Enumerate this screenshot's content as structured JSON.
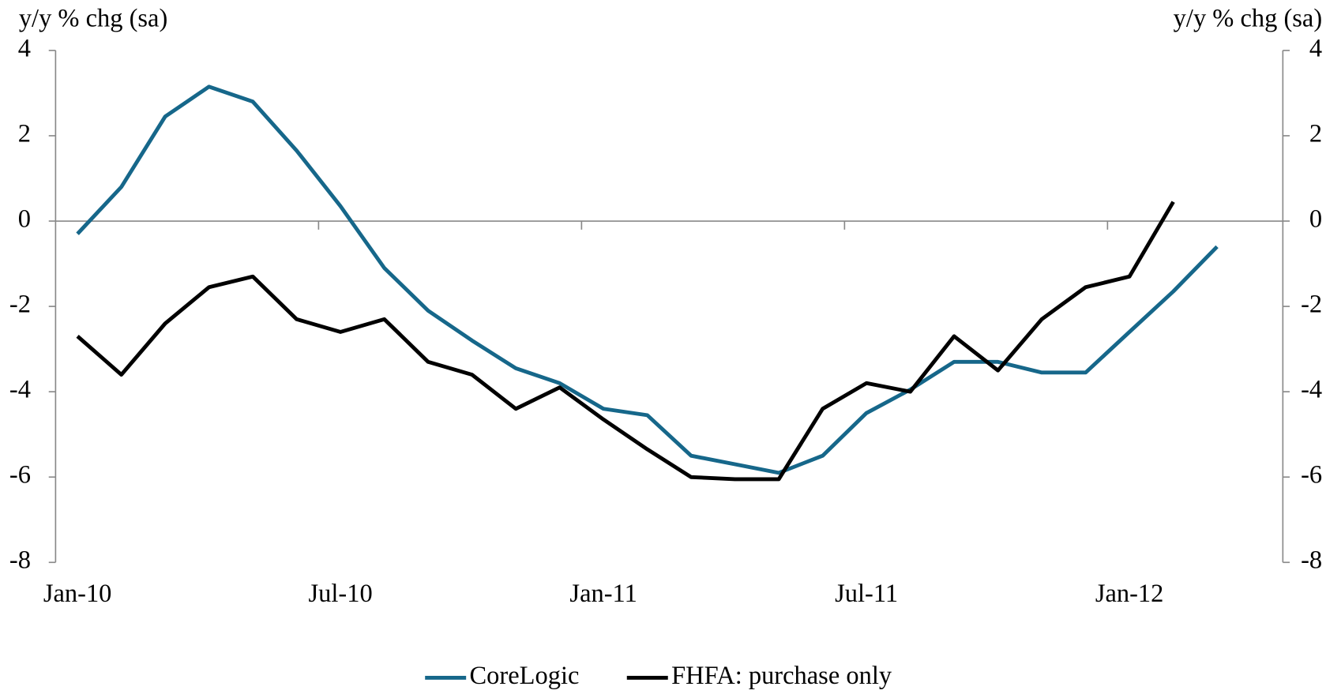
{
  "chart_data": {
    "type": "line",
    "y_label": "y/y % chg (sa)",
    "y2_label": "y/y % chg (sa)",
    "categories": [
      "Jan-10",
      null,
      null,
      null,
      null,
      null,
      "Jul-10",
      null,
      null,
      null,
      null,
      null,
      "Jan-11",
      null,
      null,
      null,
      null,
      null,
      "Jul-11",
      null,
      null,
      null,
      null,
      null,
      "Jan-12",
      null,
      null,
      null
    ],
    "series": [
      {
        "name": "CoreLogic",
        "color": "#16678a",
        "values": [
          -0.3,
          0.8,
          2.45,
          3.15,
          2.8,
          1.65,
          0.35,
          -1.1,
          -2.1,
          -2.8,
          -3.45,
          -3.8,
          -4.4,
          -4.55,
          -5.5,
          -5.7,
          -5.9,
          -5.5,
          -4.5,
          -3.95,
          -3.3,
          -3.3,
          -3.55,
          -3.55,
          -2.6,
          -1.65,
          -0.6,
          null
        ]
      },
      {
        "name": "FHFA: purchase only",
        "color": "#000000",
        "values": [
          -2.7,
          -3.6,
          -2.4,
          -1.55,
          -1.3,
          -2.3,
          -2.6,
          -2.3,
          -3.3,
          -3.6,
          -4.4,
          -3.9,
          -4.65,
          -5.35,
          -6.0,
          -6.05,
          -6.05,
          -4.4,
          -3.8,
          -4.0,
          -2.7,
          -3.5,
          -2.3,
          -1.55,
          -1.3,
          0.45,
          null,
          null
        ]
      }
    ],
    "ylim": [
      -8,
      4
    ],
    "yticks": [
      -8,
      -6,
      -4,
      -2,
      0,
      2,
      4
    ],
    "y2lim": [
      -8,
      4
    ],
    "y2ticks": [
      -8,
      -6,
      -4,
      -2,
      0,
      2,
      4
    ],
    "legend": "bottom"
  }
}
